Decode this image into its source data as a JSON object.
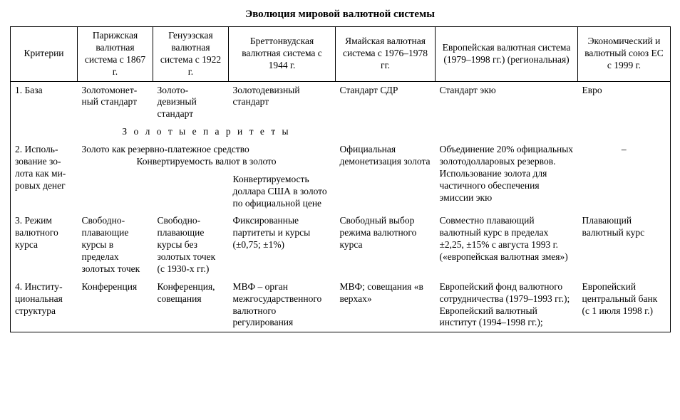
{
  "title": "Эволюция мировой валютной системы",
  "headers": {
    "criteria": "Критерии",
    "paris": "Парижская валютная система с 1867 г.",
    "genoa": "Генуэзская валютная система с 1922 г.",
    "bretton": "Бреттонвудская валютная система с 1944 г.",
    "jamaica": "Ямайская валют­ная система с 1976–1978 гг.",
    "european": "Европейская валютная система (1979–1998 гг.) (региональная)",
    "emu": "Экономический и валютный союз ЕС с 1999 г."
  },
  "rows": {
    "r1": {
      "label": "1. База",
      "paris": "Золотомонет­ный стандарт",
      "genoa": "Золото-девизный стандарт",
      "bretton": "Золотодевизный стандарт",
      "jamaica": "Стандарт СДР",
      "european": "Стандарт экю",
      "emu": "Евро"
    },
    "parities_heading": "З о л о т ы е   п а р и т е т ы",
    "r2": {
      "label": "2. Исполь­зование зо­лота как ми­ровых денег",
      "gold_reserve_line1": "Золото как резервно-платежное средство",
      "gold_reserve_line2": "Конвертируемость валют в золото",
      "bretton_extra": "Конвертируемость доллара США в зо­лото по официаль­ной цене",
      "jamaica": "Официальная демонетизация золота",
      "european": "Объединение 20% офици­альных золотодолларо­вых резервов. Использо­вание золота для частич­ного обеспечения эмиссии экю",
      "emu": "–"
    },
    "r3": {
      "label": "3. Режим валютного курса",
      "paris": "Свободно-плавающие курсы в пределах золотых точек",
      "genoa": "Свободно-плавающие курсы без золотых точек (с 1930-х гг.)",
      "bretton": "Фиксированные партитеты и курсы (±0,75; ±1%)",
      "jamaica": "Свободный вы­бор режима ва­лютного курса",
      "european": "Совместно плавающий валютный курс в пределах ±2,25, ±15% с августа 1993 г. («европейская ва­лютная змея»)",
      "emu": "Плавающий валютный курс"
    },
    "r4": {
      "label": "4. Институ­циональная структура",
      "paris": "Конференция",
      "genoa": "Конферен­ция, сове­щания",
      "bretton": "МВФ – орган межгосударствен­ного валютного регулирования",
      "jamaica": "МВФ; совеща­ния «в верхах»",
      "european": "Европейский фонд валютного сотрудничес­тва (1979–1993 гг.); Европейский валютный институт (1994–1998 гг.);",
      "emu": "Европейский центральный банк (с 1 июля 1998 г.)"
    }
  }
}
